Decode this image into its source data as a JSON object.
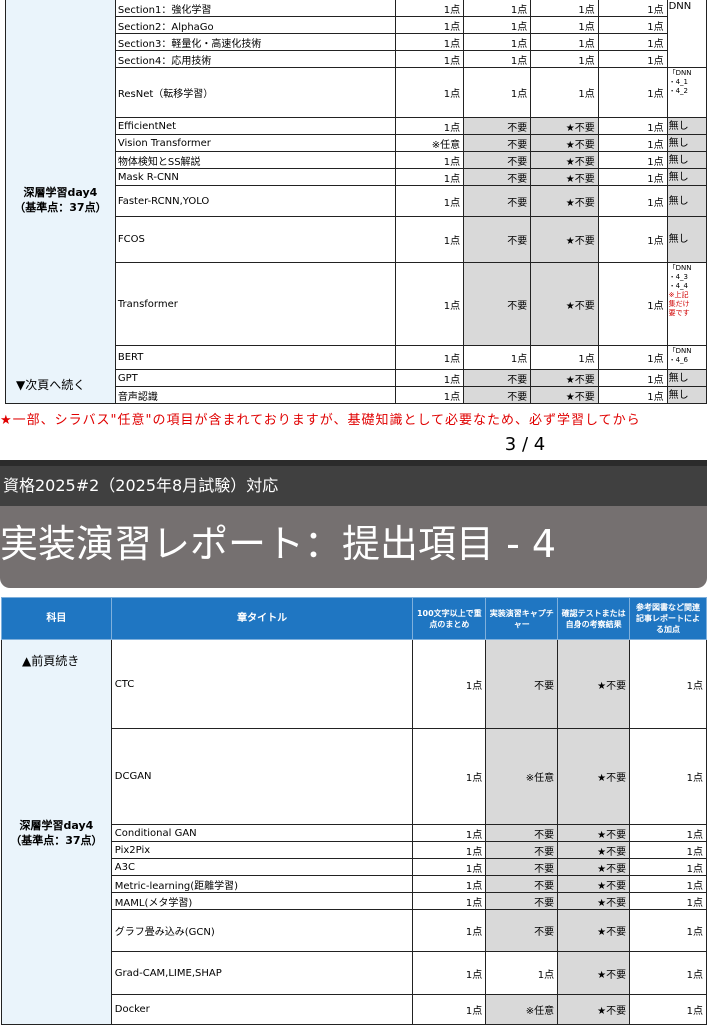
{
  "prev_table": {
    "subject_line1": "深層学習day4",
    "subject_line2": "（基準点：37点）",
    "next_page": "▼次頁へ続く",
    "rows": [
      {
        "title": "Section1：強化学習",
        "c1": "1点",
        "c2": "1点",
        "c3": "1点",
        "c4": "1点",
        "ref": "DNN"
      },
      {
        "title": "Section2：AlphaGo",
        "c1": "1点",
        "c2": "1点",
        "c3": "1点",
        "c4": "1点",
        "ref": ""
      },
      {
        "title": "Section3：軽量化・高速化技術",
        "c1": "1点",
        "c2": "1点",
        "c3": "1点",
        "c4": "1点",
        "ref": ""
      },
      {
        "title": "Section4：応用技術",
        "c1": "1点",
        "c2": "1点",
        "c3": "1点",
        "c4": "1点",
        "ref": ""
      },
      {
        "title": "ResNet（転移学習）",
        "c1": "1点",
        "c2": "1点",
        "c3": "1点",
        "c4": "1点",
        "ref": "「DNN\n・4_1\n・4_2"
      },
      {
        "title": "EfficientNet",
        "c1": "1点",
        "c2": "不要",
        "c3": "★不要",
        "c4": "1点",
        "ref": "無し"
      },
      {
        "title": "Vision Transformer",
        "c1": "※任意",
        "c2": "不要",
        "c3": "★不要",
        "c4": "1点",
        "ref": "無し"
      },
      {
        "title": "物体検知とSS解説",
        "c1": "1点",
        "c2": "不要",
        "c3": "★不要",
        "c4": "1点",
        "ref": "無し"
      },
      {
        "title": "Mask R-CNN",
        "c1": "1点",
        "c2": "不要",
        "c3": "★不要",
        "c4": "1点",
        "ref": "無し"
      },
      {
        "title": "Faster-RCNN,YOLO",
        "c1": "1点",
        "c2": "不要",
        "c3": "★不要",
        "c4": "1点",
        "ref": "無し"
      },
      {
        "title": "FCOS",
        "c1": "1点",
        "c2": "不要",
        "c3": "★不要",
        "c4": "1点",
        "ref": "無し"
      },
      {
        "title": "Transformer",
        "c1": "1点",
        "c2": "不要",
        "c3": "★不要",
        "c4": "1点",
        "ref": "「DNN\n・4_3\n・4_4",
        "ref_red": "※上記\n集だけ\n要です"
      },
      {
        "title": "BERT",
        "c1": "1点",
        "c2": "1点",
        "c3": "1点",
        "c4": "1点",
        "ref": "「DNN\n・4_6"
      },
      {
        "title": "GPT",
        "c1": "1点",
        "c2": "不要",
        "c3": "★不要",
        "c4": "1点",
        "ref": "無し"
      },
      {
        "title": "音声認識",
        "c1": "1点",
        "c2": "不要",
        "c3": "★不要",
        "c4": "1点",
        "ref": "無し"
      }
    ]
  },
  "notice": "★一部、シラバス\"任意\"の項目が含まれておりますが、基礎知識として必要なため、必ず学習してから",
  "page_number": "3 / 4",
  "exam_label": "資格2025#2（2025年8月試験）対応",
  "section_title": "実装演習レポート：提出項目 - 4",
  "main_table": {
    "headers": {
      "subject": "科目",
      "chapter": "章タイトル",
      "summary": "100文字以上で重点のまとめ",
      "capture": "実装演習キャプチャー",
      "test": "確認テストまたは自身の考察結果",
      "reference": "参考図書など関連記事レポートによる加点"
    },
    "subject_prev": "▲前頁続き",
    "subject_line1": "深層学習day4",
    "subject_line2": "（基準点：37点）",
    "rows": [
      {
        "title": "CTC",
        "c1": "1点",
        "c2": "不要",
        "c3": "★不要",
        "c4": "1点"
      },
      {
        "title": "DCGAN",
        "c1": "1点",
        "c2": "※任意",
        "c3": "★不要",
        "c4": "1点"
      },
      {
        "title": "Conditional GAN",
        "c1": "1点",
        "c2": "不要",
        "c3": "★不要",
        "c4": "1点"
      },
      {
        "title": "Pix2Pix",
        "c1": "1点",
        "c2": "不要",
        "c3": "★不要",
        "c4": "1点"
      },
      {
        "title": "A3C",
        "c1": "1点",
        "c2": "不要",
        "c3": "★不要",
        "c4": "1点"
      },
      {
        "title": "Metric-learning(距離学習)",
        "c1": "1点",
        "c2": "不要",
        "c3": "★不要",
        "c4": "1点"
      },
      {
        "title": "MAML(メタ学習)",
        "c1": "1点",
        "c2": "不要",
        "c3": "★不要",
        "c4": "1点"
      },
      {
        "title": "グラフ畳み込み(GCN)",
        "c1": "1点",
        "c2": "不要",
        "c3": "★不要",
        "c4": "1点"
      },
      {
        "title": "Grad-CAM,LIME,SHAP",
        "c1": "1点",
        "c2": "1点",
        "c3": "★不要",
        "c4": "1点"
      },
      {
        "title": "Docker",
        "c1": "1点",
        "c2": "※任意",
        "c3": "★不要",
        "c4": "1点"
      }
    ]
  }
}
